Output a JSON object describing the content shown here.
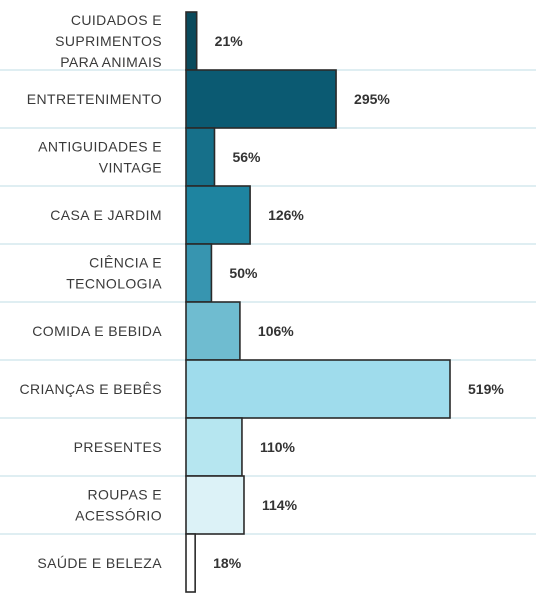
{
  "chart_data": {
    "type": "bar",
    "orientation": "horizontal",
    "categories": [
      [
        "CUIDADOS E",
        "SUPRIMENTOS",
        "PARA ANIMAIS"
      ],
      [
        "ENTRETENIMENTO"
      ],
      [
        "ANTIGUIDADES E",
        "VINTAGE"
      ],
      [
        "CASA E JARDIM"
      ],
      [
        "CIÊNCIA E",
        "TECNOLOGIA"
      ],
      [
        "COMIDA E BEBIDA"
      ],
      [
        "CRIANÇAS E BEBÊS"
      ],
      [
        "PRESENTES"
      ],
      [
        "ROUPAS E",
        "ACESSÓRIO"
      ],
      [
        "SAÚDE E BELEZA"
      ]
    ],
    "values": [
      21,
      295,
      56,
      126,
      50,
      106,
      519,
      110,
      114,
      18
    ],
    "value_labels": [
      "21%",
      "295%",
      "56%",
      "126%",
      "50%",
      "106%",
      "519%",
      "110%",
      "114%",
      "18%"
    ],
    "colors": [
      "#0a4a5c",
      "#0b5a72",
      "#16708a",
      "#1e84a0",
      "#3795b0",
      "#6fbcd0",
      "#9fdcec",
      "#b6e6f0",
      "#dcf2f7",
      "#ffffff"
    ],
    "xlim": [
      0,
      519
    ],
    "grid": false,
    "legend": "none"
  }
}
